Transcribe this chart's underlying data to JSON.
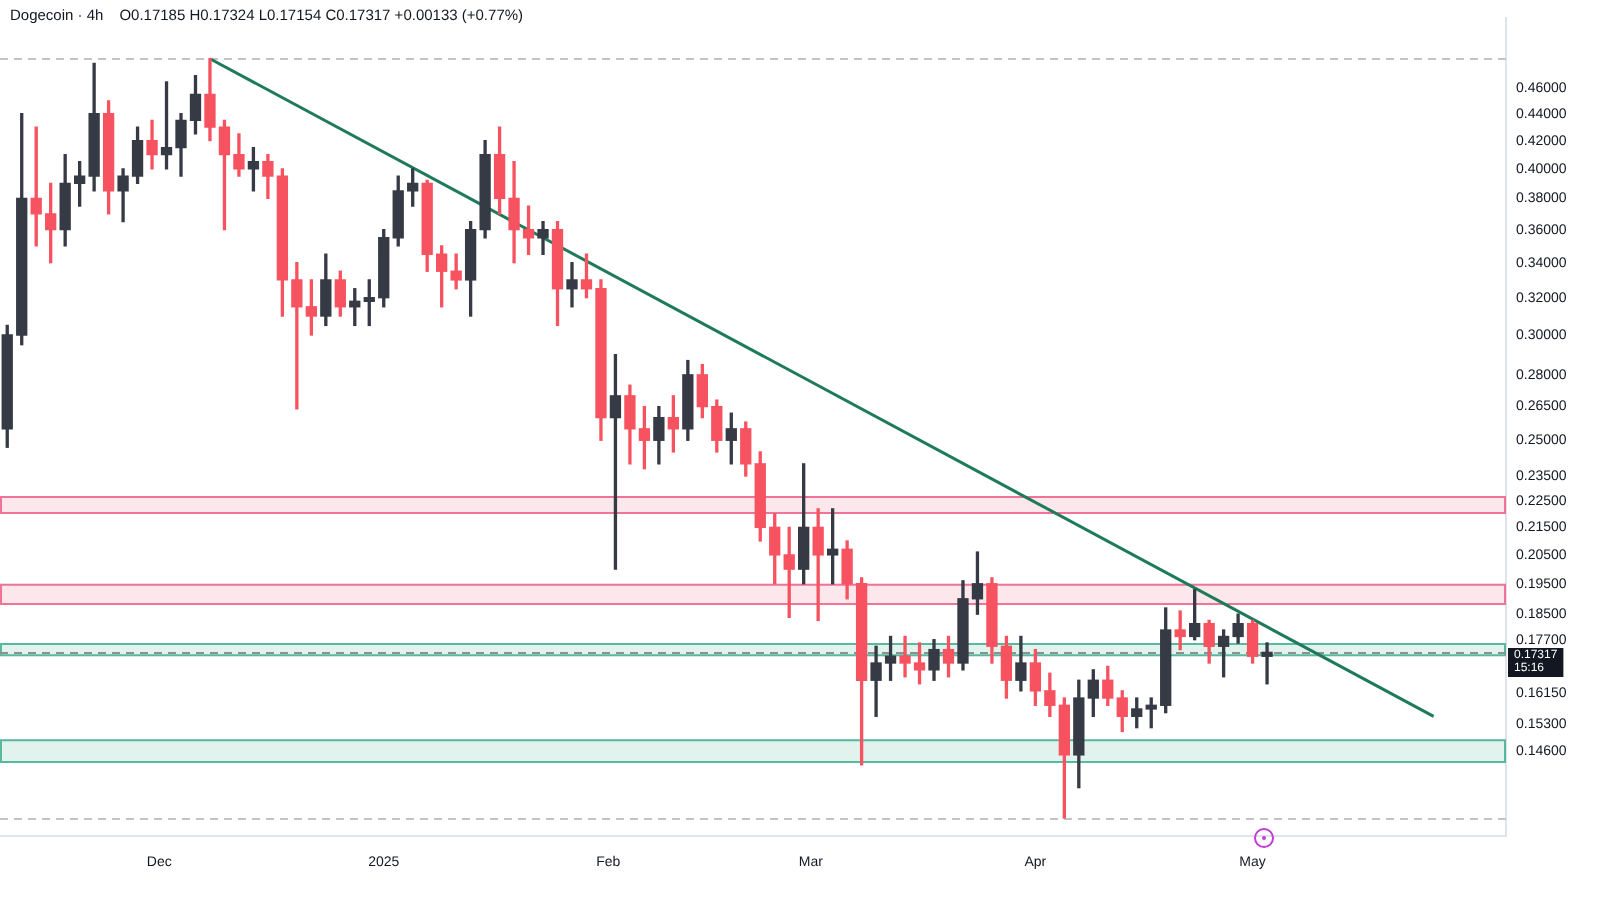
{
  "chart_data": {
    "type": "candlestick",
    "title": "Dogecoin · 4h",
    "subtitle": "O0.17185 H0.17324 L0.17154 C0.17317 +0.00133 (+0.77%)",
    "x": [
      "2024-11-10",
      "2024-11-12",
      "2024-11-14",
      "2024-11-16",
      "2024-11-18",
      "2024-11-20",
      "2024-11-22",
      "2024-11-24",
      "2024-11-26",
      "2024-11-28",
      "2024-11-30",
      "2024-12-02",
      "2024-12-04",
      "2024-12-06",
      "2024-12-08",
      "2024-12-10",
      "2024-12-12",
      "2024-12-14",
      "2024-12-16",
      "2024-12-18",
      "2024-12-20",
      "2024-12-22",
      "2024-12-24",
      "2024-12-26",
      "2024-12-28",
      "2024-12-30",
      "2025-01-01",
      "2025-01-03",
      "2025-01-05",
      "2025-01-07",
      "2025-01-09",
      "2025-01-11",
      "2025-01-13",
      "2025-01-15",
      "2025-01-17",
      "2025-01-19",
      "2025-01-21",
      "2025-01-23",
      "2025-01-25",
      "2025-01-27",
      "2025-01-29",
      "2025-01-31",
      "2025-02-02",
      "2025-02-04",
      "2025-02-06",
      "2025-02-08",
      "2025-02-10",
      "2025-02-12",
      "2025-02-14",
      "2025-02-16",
      "2025-02-18",
      "2025-02-20",
      "2025-02-22",
      "2025-02-24",
      "2025-02-26",
      "2025-02-28",
      "2025-03-02",
      "2025-03-04",
      "2025-03-06",
      "2025-03-08",
      "2025-03-10",
      "2025-03-12",
      "2025-03-14",
      "2025-03-16",
      "2025-03-18",
      "2025-03-20",
      "2025-03-22",
      "2025-03-24",
      "2025-03-26",
      "2025-03-28",
      "2025-03-30",
      "2025-04-01",
      "2025-04-03",
      "2025-04-05",
      "2025-04-07",
      "2025-04-09",
      "2025-04-11",
      "2025-04-13",
      "2025-04-15",
      "2025-04-17",
      "2025-04-19",
      "2025-04-21",
      "2025-04-23",
      "2025-04-25",
      "2025-04-27",
      "2025-04-29",
      "2025-05-01",
      "2025-05-03"
    ],
    "ohlc": [
      [
        0.255,
        0.305,
        0.247,
        0.3
      ],
      [
        0.3,
        0.44,
        0.295,
        0.38
      ],
      [
        0.38,
        0.43,
        0.35,
        0.37
      ],
      [
        0.37,
        0.39,
        0.34,
        0.36
      ],
      [
        0.36,
        0.41,
        0.35,
        0.39
      ],
      [
        0.39,
        0.405,
        0.375,
        0.395
      ],
      [
        0.395,
        0.48,
        0.385,
        0.44
      ],
      [
        0.44,
        0.45,
        0.37,
        0.385
      ],
      [
        0.385,
        0.4,
        0.365,
        0.395
      ],
      [
        0.395,
        0.43,
        0.39,
        0.42
      ],
      [
        0.42,
        0.435,
        0.4,
        0.41
      ],
      [
        0.41,
        0.465,
        0.4,
        0.415
      ],
      [
        0.415,
        0.44,
        0.395,
        0.435
      ],
      [
        0.435,
        0.47,
        0.425,
        0.455
      ],
      [
        0.455,
        0.484,
        0.42,
        0.43
      ],
      [
        0.43,
        0.435,
        0.36,
        0.41
      ],
      [
        0.41,
        0.425,
        0.395,
        0.4
      ],
      [
        0.4,
        0.415,
        0.385,
        0.405
      ],
      [
        0.405,
        0.41,
        0.38,
        0.395
      ],
      [
        0.395,
        0.4,
        0.31,
        0.33
      ],
      [
        0.33,
        0.34,
        0.264,
        0.315
      ],
      [
        0.315,
        0.33,
        0.3,
        0.31
      ],
      [
        0.31,
        0.345,
        0.305,
        0.33
      ],
      [
        0.33,
        0.335,
        0.31,
        0.315
      ],
      [
        0.315,
        0.325,
        0.305,
        0.318
      ],
      [
        0.318,
        0.33,
        0.305,
        0.32
      ],
      [
        0.32,
        0.36,
        0.315,
        0.355
      ],
      [
        0.355,
        0.395,
        0.35,
        0.385
      ],
      [
        0.385,
        0.4,
        0.375,
        0.39
      ],
      [
        0.39,
        0.392,
        0.335,
        0.345
      ],
      [
        0.345,
        0.35,
        0.315,
        0.335
      ],
      [
        0.335,
        0.345,
        0.325,
        0.33
      ],
      [
        0.33,
        0.365,
        0.31,
        0.36
      ],
      [
        0.36,
        0.42,
        0.355,
        0.41
      ],
      [
        0.41,
        0.43,
        0.37,
        0.38
      ],
      [
        0.38,
        0.405,
        0.34,
        0.36
      ],
      [
        0.36,
        0.375,
        0.345,
        0.355
      ],
      [
        0.355,
        0.365,
        0.345,
        0.36
      ],
      [
        0.36,
        0.365,
        0.305,
        0.325
      ],
      [
        0.325,
        0.34,
        0.315,
        0.33
      ],
      [
        0.33,
        0.345,
        0.32,
        0.325
      ],
      [
        0.325,
        0.33,
        0.25,
        0.26
      ],
      [
        0.26,
        0.29,
        0.2,
        0.27
      ],
      [
        0.27,
        0.275,
        0.24,
        0.255
      ],
      [
        0.255,
        0.265,
        0.238,
        0.25
      ],
      [
        0.25,
        0.265,
        0.24,
        0.26
      ],
      [
        0.26,
        0.27,
        0.245,
        0.255
      ],
      [
        0.255,
        0.287,
        0.25,
        0.28
      ],
      [
        0.28,
        0.285,
        0.26,
        0.265
      ],
      [
        0.265,
        0.268,
        0.245,
        0.25
      ],
      [
        0.25,
        0.262,
        0.24,
        0.255
      ],
      [
        0.255,
        0.258,
        0.235,
        0.24
      ],
      [
        0.24,
        0.245,
        0.21,
        0.215
      ],
      [
        0.215,
        0.22,
        0.195,
        0.205
      ],
      [
        0.205,
        0.215,
        0.184,
        0.2
      ],
      [
        0.2,
        0.24,
        0.195,
        0.215
      ],
      [
        0.215,
        0.222,
        0.183,
        0.205
      ],
      [
        0.205,
        0.222,
        0.195,
        0.207
      ],
      [
        0.207,
        0.21,
        0.19,
        0.195
      ],
      [
        0.195,
        0.197,
        0.1425,
        0.165
      ],
      [
        0.165,
        0.175,
        0.155,
        0.17
      ],
      [
        0.17,
        0.178,
        0.165,
        0.172
      ],
      [
        0.172,
        0.178,
        0.166,
        0.17
      ],
      [
        0.17,
        0.176,
        0.164,
        0.168
      ],
      [
        0.168,
        0.177,
        0.165,
        0.174
      ],
      [
        0.174,
        0.178,
        0.166,
        0.17
      ],
      [
        0.17,
        0.196,
        0.168,
        0.19
      ],
      [
        0.19,
        0.206,
        0.185,
        0.195
      ],
      [
        0.195,
        0.197,
        0.17,
        0.175
      ],
      [
        0.175,
        0.178,
        0.16,
        0.165
      ],
      [
        0.165,
        0.178,
        0.162,
        0.17
      ],
      [
        0.17,
        0.174,
        0.158,
        0.162
      ],
      [
        0.162,
        0.167,
        0.155,
        0.158
      ],
      [
        0.158,
        0.16,
        0.13,
        0.145
      ],
      [
        0.145,
        0.165,
        0.137,
        0.16
      ],
      [
        0.16,
        0.168,
        0.155,
        0.165
      ],
      [
        0.165,
        0.169,
        0.158,
        0.16
      ],
      [
        0.16,
        0.162,
        0.151,
        0.155
      ],
      [
        0.155,
        0.16,
        0.152,
        0.157
      ],
      [
        0.157,
        0.16,
        0.152,
        0.158
      ],
      [
        0.158,
        0.187,
        0.156,
        0.18
      ],
      [
        0.18,
        0.186,
        0.174,
        0.178
      ],
      [
        0.178,
        0.193,
        0.177,
        0.182
      ],
      [
        0.182,
        0.183,
        0.17,
        0.175
      ],
      [
        0.175,
        0.18,
        0.166,
        0.178
      ],
      [
        0.178,
        0.185,
        0.176,
        0.182
      ],
      [
        0.182,
        0.183,
        0.17,
        0.172
      ],
      [
        0.172,
        0.176,
        0.164,
        0.17317
      ]
    ],
    "colors": [
      "#363a45",
      "#363a45",
      "#f7525f",
      "#f7525f",
      "#363a45",
      "#363a45",
      "#363a45",
      "#f7525f",
      "#363a45",
      "#363a45",
      "#f7525f",
      "#363a45",
      "#363a45",
      "#363a45",
      "#f7525f",
      "#f7525f",
      "#f7525f",
      "#363a45",
      "#f7525f",
      "#f7525f",
      "#f7525f",
      "#f7525f",
      "#363a45",
      "#f7525f",
      "#363a45",
      "#363a45",
      "#363a45",
      "#363a45",
      "#363a45",
      "#f7525f",
      "#f7525f",
      "#f7525f",
      "#363a45",
      "#363a45",
      "#f7525f",
      "#f7525f",
      "#f7525f",
      "#363a45",
      "#f7525f",
      "#363a45",
      "#f7525f",
      "#f7525f",
      "#363a45",
      "#f7525f",
      "#f7525f",
      "#363a45",
      "#f7525f",
      "#363a45",
      "#f7525f",
      "#f7525f",
      "#363a45",
      "#f7525f",
      "#f7525f",
      "#f7525f",
      "#f7525f",
      "#363a45",
      "#f7525f",
      "#363a45",
      "#f7525f",
      "#f7525f",
      "#363a45",
      "#363a45",
      "#f7525f",
      "#f7525f",
      "#363a45",
      "#f7525f",
      "#363a45",
      "#363a45",
      "#f7525f",
      "#f7525f",
      "#363a45",
      "#f7525f",
      "#f7525f",
      "#f7525f",
      "#363a45",
      "#363a45",
      "#f7525f",
      "#f7525f",
      "#363a45",
      "#363a45",
      "#363a45",
      "#f7525f",
      "#363a45",
      "#f7525f",
      "#363a45",
      "#363a45",
      "#f7525f",
      "#363a45"
    ],
    "series": [
      {
        "type": "line",
        "x": [
          "2024-12-08",
          "2025-05-26"
        ],
        "values": [
          0.484,
          0.155
        ],
        "color": "#1f7a5c"
      }
    ],
    "log": true,
    "xlim": [
      "2024-11-09",
      "2025-06-05"
    ],
    "xticks": [
      {
        "value": "2024-12-01",
        "label": "Dec"
      },
      {
        "value": "2025-01-01",
        "label": "2025"
      },
      {
        "value": "2025-02-01",
        "label": "Feb"
      },
      {
        "value": "2025-03-01",
        "label": "Mar"
      },
      {
        "value": "2025-04-01",
        "label": "Apr"
      },
      {
        "value": "2025-05-01",
        "label": "May"
      }
    ],
    "ylim": [
      0.126,
      0.519
    ],
    "yticks": [
      {
        "value": 0.46,
        "label": "0.46000"
      },
      {
        "value": 0.44,
        "label": "0.44000"
      },
      {
        "value": 0.42,
        "label": "0.42000"
      },
      {
        "value": 0.4,
        "label": "0.40000"
      },
      {
        "value": 0.38,
        "label": "0.38000"
      },
      {
        "value": 0.36,
        "label": "0.36000"
      },
      {
        "value": 0.34,
        "label": "0.34000"
      },
      {
        "value": 0.32,
        "label": "0.32000"
      },
      {
        "value": 0.3,
        "label": "0.30000"
      },
      {
        "value": 0.28,
        "label": "0.28000"
      },
      {
        "value": 0.265,
        "label": "0.26500"
      },
      {
        "value": 0.25,
        "label": "0.25000"
      },
      {
        "value": 0.235,
        "label": "0.23500"
      },
      {
        "value": 0.225,
        "label": "0.22500"
      },
      {
        "value": 0.215,
        "label": "0.21500"
      },
      {
        "value": 0.205,
        "label": "0.20500"
      },
      {
        "value": 0.195,
        "label": "0.19500"
      },
      {
        "value": 0.185,
        "label": "0.18500"
      },
      {
        "value": 0.177,
        "label": "0.17700"
      },
      {
        "value": 0.1615,
        "label": "0.16150"
      },
      {
        "value": 0.153,
        "label": "0.15300"
      },
      {
        "value": 0.146,
        "label": "0.14600"
      }
    ],
    "bands": [
      {
        "axis": "y",
        "from": 0.22,
        "to": 0.227,
        "color": "#ec5f87"
      },
      {
        "axis": "y",
        "from": 0.188,
        "to": 0.195,
        "color": "#ec5f87"
      },
      {
        "axis": "y",
        "from": 0.172,
        "to": 0.176,
        "color": "#3fae90"
      },
      {
        "axis": "y",
        "from": 0.143,
        "to": 0.149,
        "color": "#3fae90"
      }
    ],
    "ref_lines": [
      {
        "axis": "y",
        "value": 0.484,
        "color": "#c4c4c4",
        "line_style": "dashed"
      },
      {
        "axis": "y",
        "value": 0.13,
        "color": "#c4c4c4",
        "line_style": "dashed"
      },
      {
        "axis": "y",
        "value": 0.17317,
        "label": "0.17317\n15:16",
        "color": "#8f8f8f",
        "line_style": "dashed"
      }
    ]
  }
}
